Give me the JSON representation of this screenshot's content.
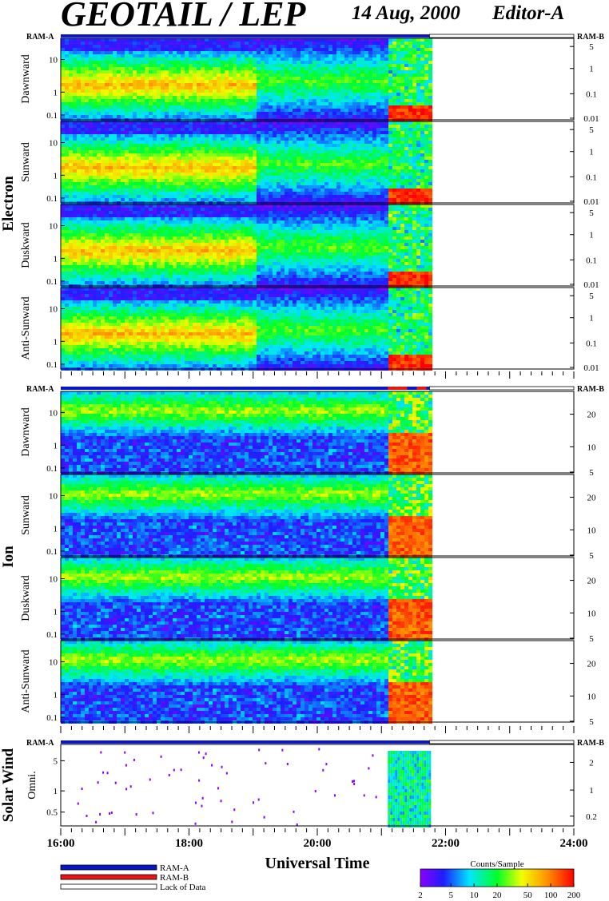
{
  "header": {
    "title": "GEOTAIL / LEP",
    "date": "14 Aug, 2000",
    "editor": "Editor-A"
  },
  "mode_bar": {
    "left_label": "RAM-A",
    "right_label": "RAM-B"
  },
  "colors": {
    "ram_a": "#0a14c8",
    "ram_b": "#e61414",
    "lack_of_data": "#ffffff"
  },
  "chart_data": {
    "type": "heatmap",
    "xlabel": "Universal Time",
    "x_ticks": [
      "16:00",
      "18:00",
      "20:00",
      "22:00",
      "24:00"
    ],
    "x_range_hours": [
      16,
      24
    ],
    "data_end_hour": 21.75,
    "groups": [
      {
        "name": "Electron",
        "right_ticks": [
          "5",
          "1",
          "0.1",
          "0.01"
        ],
        "panels": [
          {
            "label": "Dawnward"
          },
          {
            "label": "Sunward"
          },
          {
            "label": "Duskward"
          },
          {
            "label": "Anti-Sunward"
          }
        ]
      },
      {
        "name": "Ion",
        "right_ticks": [
          "20",
          "10",
          "5"
        ],
        "panels": [
          {
            "label": "Dawnward"
          },
          {
            "label": "Sunward"
          },
          {
            "label": "Duskward"
          },
          {
            "label": "Anti-Sunward"
          }
        ]
      },
      {
        "name": "Solar Wind",
        "right_ticks": [
          "2",
          "1",
          "0.2"
        ],
        "panels": [
          {
            "label": "Omni."
          }
        ]
      }
    ],
    "left_ticks_main": [
      "10",
      "1",
      "0.1"
    ],
    "left_ticks_sw": [
      "5",
      "1",
      "0.5"
    ],
    "colorbar": {
      "title": "Counts/Sample",
      "ticks": [
        "2",
        "5",
        "10",
        "20",
        "50",
        "100",
        "200"
      ],
      "tick_values": [
        2,
        5,
        10,
        20,
        50,
        100,
        200
      ],
      "range": [
        2,
        200
      ]
    },
    "mode_legend": [
      "RAM-A",
      "RAM-B",
      "Lack of Data"
    ]
  }
}
